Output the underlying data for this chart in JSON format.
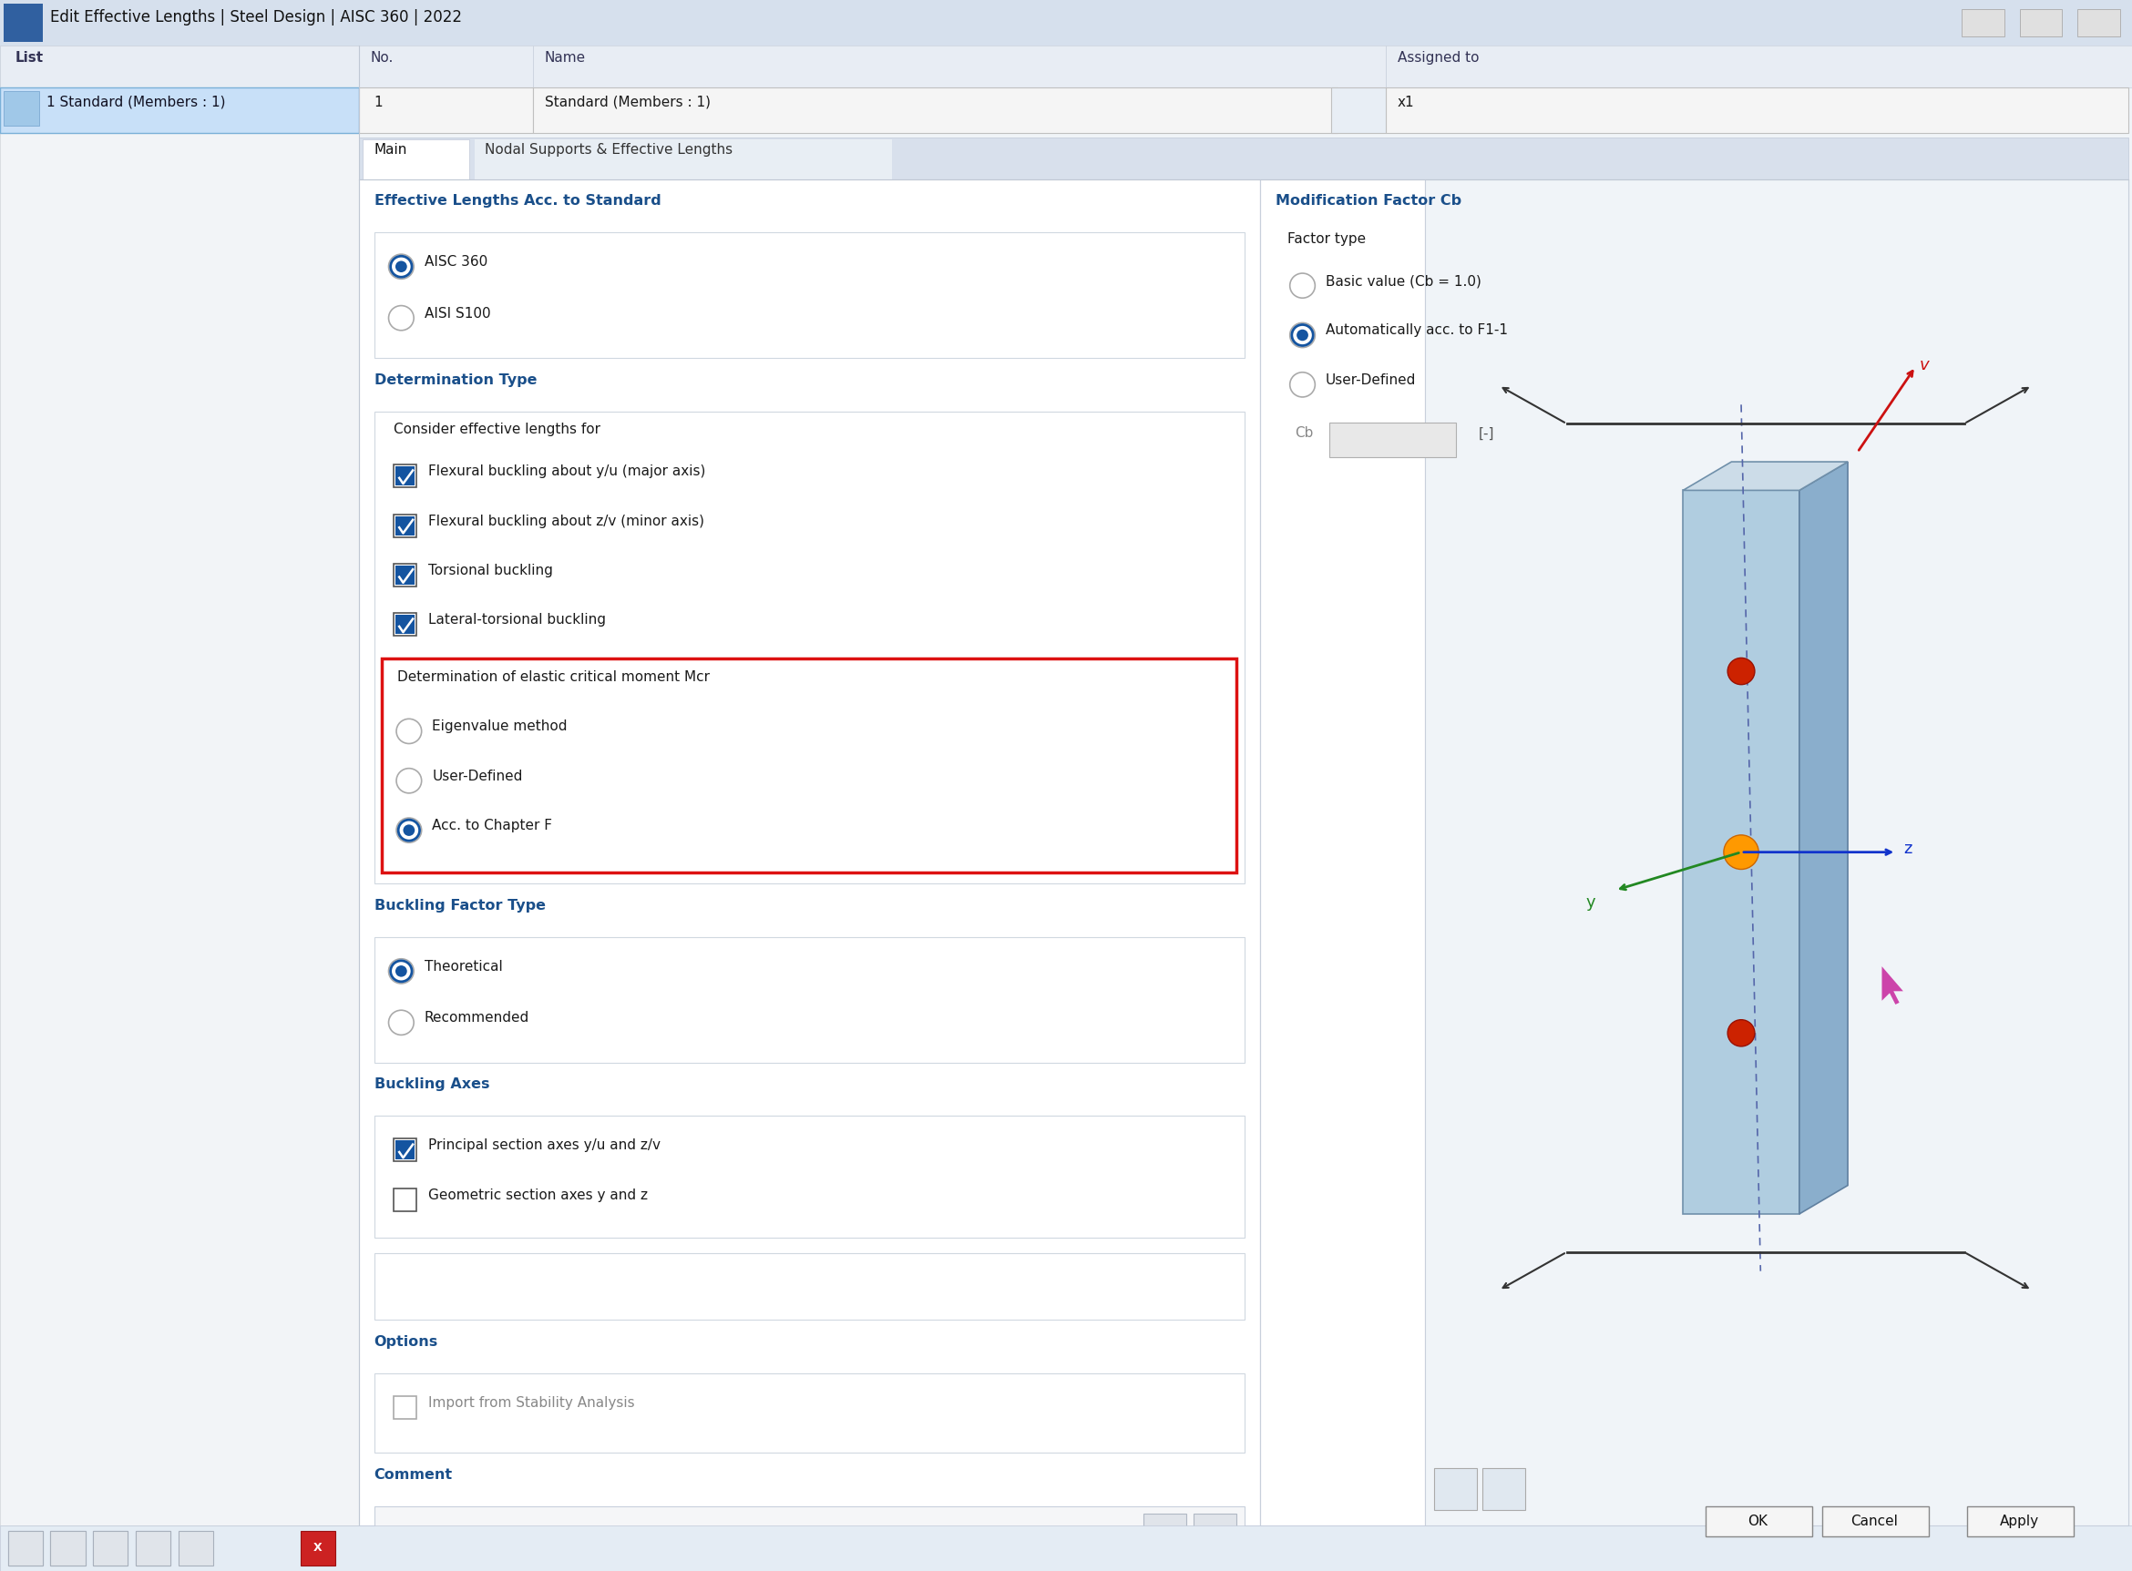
{
  "title": "Edit Effective Lengths | Steel Design | AISC 360 | 2022",
  "window_bg": "#eef2f6",
  "titlebar_bg": "#d6e0ed",
  "panel_bg": "#ffffff",
  "panel_bg2": "#f7f8fa",
  "header_bg": "#e4ecf4",
  "section_sep": "#d8e0ea",
  "section_hdr_bg": "#dce8f4",
  "selected_row_bg": "#c8e0f8",
  "selected_row_border": "#7ab0d8",
  "section_header_color": "#1a4f8a",
  "text_color": "#1a1a1a",
  "text_gray": "#888888",
  "red_highlight": "#dd1111",
  "blue_radio": "#1454a0",
  "blue_check": "#1454a0",
  "list_label": "List",
  "no_label": "No.",
  "name_label": "Name",
  "assigned_label": "Assigned to",
  "list_item": "1 Standard (Members : 1)",
  "no_value": "1",
  "name_value": "Standard (Members : 1)",
  "assigned_value": "x1",
  "tab_main": "Main",
  "tab_nodal": "Nodal Supports & Effective Lengths",
  "eff_lengths_header": "Effective Lengths Acc. to Standard",
  "radio_aisc": "AISC 360",
  "radio_aisi": "AISI S100",
  "det_type_header": "Determination Type",
  "consider_label": "Consider effective lengths for",
  "cb1": "Flexural buckling about y/u (major axis)",
  "cb2": "Flexural buckling about z/v (minor axis)",
  "cb3": "Torsional buckling",
  "cb4": "Lateral-torsional buckling",
  "det_mcr_label": "Determination of elastic critical moment Mcr",
  "radio_eigen": "Eigenvalue method",
  "radio_user_mcr": "User-Defined",
  "radio_chapter": "Acc. to Chapter F",
  "buckling_factor_header": "Buckling Factor Type",
  "radio_theoretical": "Theoretical",
  "radio_recommended": "Recommended",
  "buckling_axes_header": "Buckling Axes",
  "cb_principal": "Principal section axes y/u and z/v",
  "cb_geometric": "Geometric section axes y and z",
  "mod_factor_header": "Modification Factor Cb",
  "factor_type_label": "Factor type",
  "radio_basic": "Basic value (Cb = 1.0)",
  "radio_auto": "Automatically acc. to F1-1",
  "radio_user_def": "User-Defined",
  "cb_label": "Cb",
  "options_header": "Options",
  "cb_import": "Import from Stability Analysis",
  "comment_label": "Comment",
  "ok_btn": "OK",
  "cancel_btn": "Cancel",
  "apply_btn": "Apply"
}
